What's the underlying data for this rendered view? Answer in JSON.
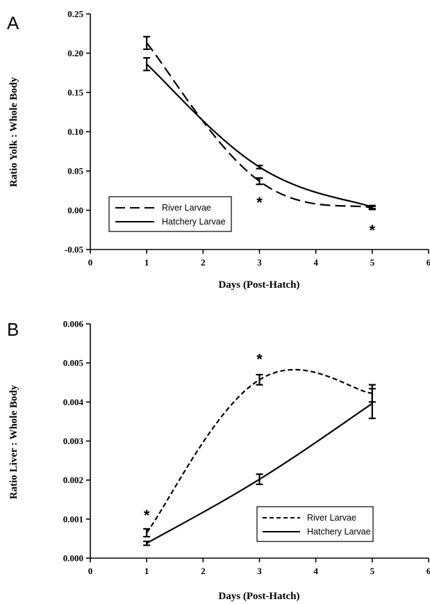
{
  "figure": {
    "colors": {
      "axis": "#000000",
      "series": "#000000",
      "background": "#ffffff"
    }
  },
  "chart_data": [
    {
      "panel": "A",
      "type": "line",
      "xlabel": "Days (Post-Hatch)",
      "ylabel": "Ratio Yolk : Whole Body",
      "xlim": [
        0,
        6
      ],
      "ylim": [
        -0.05,
        0.25
      ],
      "xticks": [
        0,
        1,
        2,
        3,
        4,
        5,
        6
      ],
      "xtick_labels": [
        "0",
        "1",
        "2",
        "3",
        "4",
        "5",
        "6"
      ],
      "yticks": [
        -0.05,
        0.0,
        0.05,
        0.1,
        0.15,
        0.2,
        0.25
      ],
      "ytick_labels": [
        "-0.05",
        "0.00",
        "0.05",
        "0.10",
        "0.15",
        "0.20",
        "0.25"
      ],
      "grid": false,
      "legend": {
        "placement": "bottom-left",
        "boxed": true
      },
      "series": [
        {
          "name": "River Larvae",
          "style": "long-dash",
          "x": [
            1,
            3,
            5
          ],
          "y": [
            0.213,
            0.037,
            0.003
          ],
          "err": [
            0.008,
            0.004,
            0.002
          ]
        },
        {
          "name": "Hatchery Larvae",
          "style": "solid",
          "x": [
            1,
            3,
            5
          ],
          "y": [
            0.186,
            0.055,
            0.004
          ],
          "err": [
            0.008,
            0.002,
            0.002
          ]
        }
      ],
      "annotations": [
        {
          "text": "*",
          "x": 3,
          "y": 0.01
        },
        {
          "text": "*",
          "x": 5,
          "y": -0.025
        }
      ]
    },
    {
      "panel": "B",
      "type": "line",
      "xlabel": "Days (Post-Hatch)",
      "ylabel": "Ratio Liver : Whole Body",
      "xlim": [
        0,
        6
      ],
      "ylim": [
        0,
        0.006
      ],
      "xticks": [
        0,
        1,
        2,
        3,
        4,
        5,
        6
      ],
      "xtick_labels": [
        "0",
        "1",
        "2",
        "3",
        "4",
        "5",
        "6"
      ],
      "yticks": [
        0,
        0.001,
        0.002,
        0.003,
        0.004,
        0.005,
        0.006
      ],
      "ytick_labels": [
        "0.000",
        "0.001",
        "0.002",
        "0.003",
        "0.004",
        "0.005",
        "0.006"
      ],
      "grid": false,
      "legend": {
        "placement": "bottom-right",
        "boxed": true
      },
      "series": [
        {
          "name": "River Larvae",
          "style": "short-dash",
          "x": [
            1,
            3,
            5
          ],
          "y": [
            0.00065,
            0.00457,
            0.00422
          ],
          "err": [
            0.0001,
            0.00013,
            0.00022
          ]
        },
        {
          "name": "Hatchery Larvae",
          "style": "solid",
          "x": [
            1,
            3,
            5
          ],
          "y": [
            0.00038,
            0.00202,
            0.00396
          ],
          "err": [
            5e-05,
            0.00013,
            0.00038
          ]
        }
      ],
      "annotations": [
        {
          "text": "*",
          "x": 1,
          "y": 0.0011
        },
        {
          "text": "*",
          "x": 3,
          "y": 0.0051
        }
      ]
    }
  ]
}
